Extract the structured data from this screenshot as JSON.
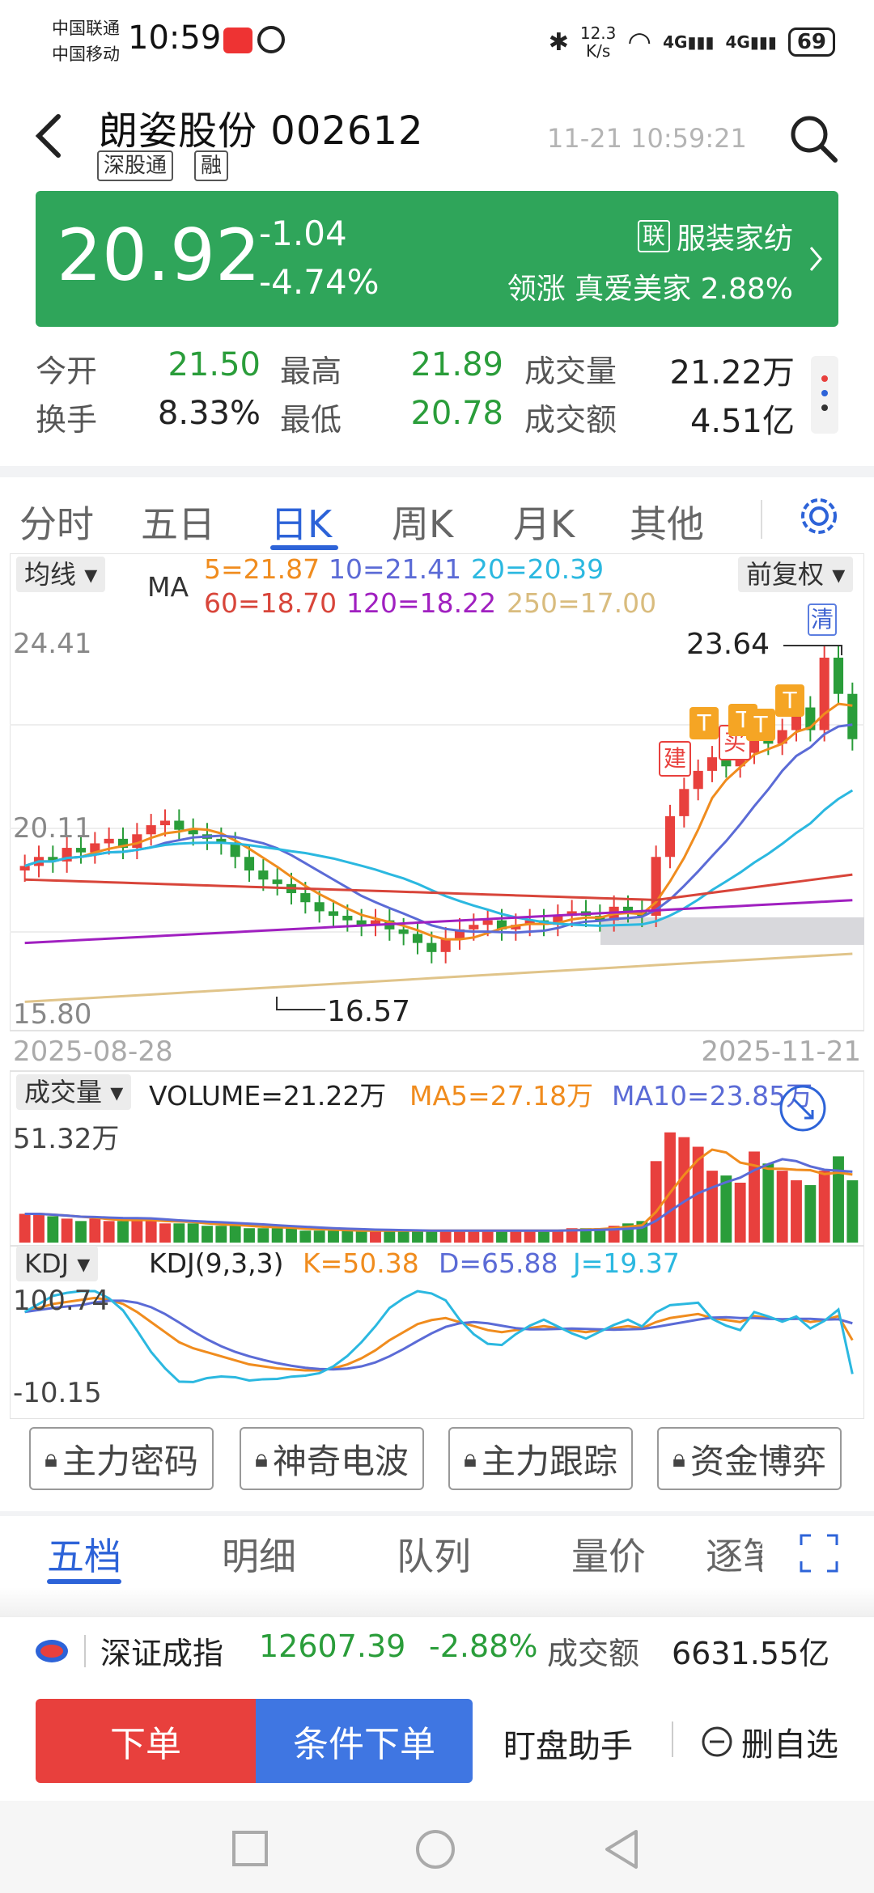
{
  "status_bar": {
    "carrier1": "中国联通",
    "carrier2": "中国移动",
    "time": "10:59",
    "network_speed_value": "12.3",
    "network_speed_unit": "K/s",
    "signal1": "4G",
    "signal2": "4G",
    "battery": "69"
  },
  "header": {
    "stock_name": "朗姿股份",
    "stock_code": "002612",
    "tag1": "深股通",
    "tag2": "融",
    "datetime": "11-21 10:59:21"
  },
  "price_card": {
    "price": "20.92",
    "change": "-1.04",
    "change_pct": "-4.74%",
    "industry_tag": "联",
    "industry": "服装家纺",
    "lead_label": "领涨",
    "lead_stock": "真爱美家",
    "lead_pct": "2.88%"
  },
  "stats": {
    "open_label": "今开",
    "open_value": "21.50",
    "high_label": "最高",
    "high_value": "21.89",
    "vol_label": "成交量",
    "vol_value": "21.22万",
    "turnover_label": "换手",
    "turnover_value": "8.33%",
    "low_label": "最低",
    "low_value": "20.78",
    "amount_label": "成交额",
    "amount_value": "4.51亿"
  },
  "period_tabs": [
    "分时",
    "五日",
    "日K",
    "周K",
    "月K",
    "其他"
  ],
  "kline": {
    "ma_selector": "均线",
    "ma_prefix": "MA",
    "ma5": "5=21.87",
    "ma10": "10=21.41",
    "ma20": "20=20.39",
    "ma60": "60=18.70",
    "ma120": "120=18.22",
    "ma250": "250=17.00",
    "adjust": "前复权",
    "y_top": "24.41",
    "y_mid": "20.11",
    "y_bottom": "15.80",
    "high_mark": "23.64",
    "low_mark": "16.57",
    "date_start": "2025-08-28",
    "date_end": "2025-11-21",
    "badge_qing": "清",
    "badge_jian": "建",
    "badge_mai": "买",
    "badge_t": "T"
  },
  "volume": {
    "selector": "成交量",
    "volume": "VOLUME=21.22万",
    "ma5": "MA5=27.18万",
    "ma10": "MA10=23.85万",
    "y_top": "51.32万"
  },
  "kdj": {
    "selector": "KDJ",
    "params": "KDJ(9,3,3)",
    "k": "K=50.38",
    "d": "D=65.88",
    "j": "J=19.37",
    "y_top": "100.74",
    "y_bottom": "-10.15"
  },
  "feature_buttons": [
    "主力密码",
    "神奇电波",
    "主力跟踪",
    "资金博弈"
  ],
  "bottom_tabs": [
    "五档",
    "明细",
    "队列",
    "量价",
    "逐笔"
  ],
  "index_bar": {
    "name": "深证成指",
    "value": "12607.39",
    "pct": "-2.88%",
    "amount_label": "成交额",
    "amount_value": "6631.55亿"
  },
  "actions": {
    "order": "下单",
    "conditional_order": "条件下单",
    "watch_helper": "盯盘助手",
    "remove_watch": "删自选"
  },
  "colors": {
    "up": "#e8403d",
    "down": "#2a9d3a",
    "accent": "#2d63d8",
    "ma5": "#f08c1e",
    "ma10": "#5b6bd6",
    "ma20": "#2bb8e0",
    "ma60": "#d8453a",
    "ma120": "#a020c0",
    "ma250": "#e0c48a"
  }
}
